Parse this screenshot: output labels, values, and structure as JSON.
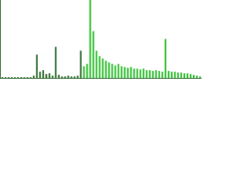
{
  "chart_data": {
    "type": "bar",
    "categories": [
      null,
      null,
      null,
      null,
      null,
      null,
      null,
      null,
      null,
      null,
      null,
      null,
      null,
      null,
      null,
      null,
      null,
      null,
      null,
      null,
      null,
      null,
      null,
      null,
      null,
      null,
      null,
      null,
      null,
      null,
      null,
      null,
      null,
      null,
      null,
      null,
      null,
      null,
      null,
      null,
      null,
      null,
      null,
      null,
      null,
      null,
      null,
      null,
      null,
      null,
      null,
      null,
      null,
      null,
      null,
      null,
      null,
      null,
      null,
      null,
      null,
      null,
      null,
      null
    ],
    "series": [
      {
        "color": "#1f5f1f",
        "values": [
          1,
          1,
          1,
          1,
          1,
          1,
          1,
          1,
          1,
          1,
          3,
          30,
          8,
          10,
          5,
          6,
          3,
          40,
          4,
          2,
          2,
          3,
          2,
          2,
          3,
          35,
          null,
          null,
          null,
          null,
          null,
          null,
          null,
          null,
          null,
          null,
          null,
          null,
          null,
          null,
          null,
          null,
          null,
          null,
          null,
          null,
          null,
          null,
          null,
          null,
          null,
          null,
          null,
          null,
          null,
          null,
          null,
          null,
          null,
          null,
          null,
          null,
          null,
          null
        ]
      },
      {
        "color": "#22bb22",
        "values": [
          null,
          null,
          null,
          null,
          null,
          null,
          null,
          null,
          null,
          null,
          null,
          null,
          null,
          null,
          null,
          null,
          null,
          null,
          null,
          null,
          null,
          null,
          null,
          null,
          null,
          null,
          15,
          18,
          100,
          60,
          35,
          28,
          25,
          22,
          20,
          18,
          16,
          18,
          15,
          14,
          13,
          14,
          12,
          12,
          11,
          12,
          10,
          10,
          9,
          10,
          9,
          8,
          50,
          9,
          8,
          8,
          7,
          7,
          6,
          6,
          5,
          4,
          3,
          2
        ]
      }
    ],
    "ylim": [
      0,
      100
    ]
  }
}
